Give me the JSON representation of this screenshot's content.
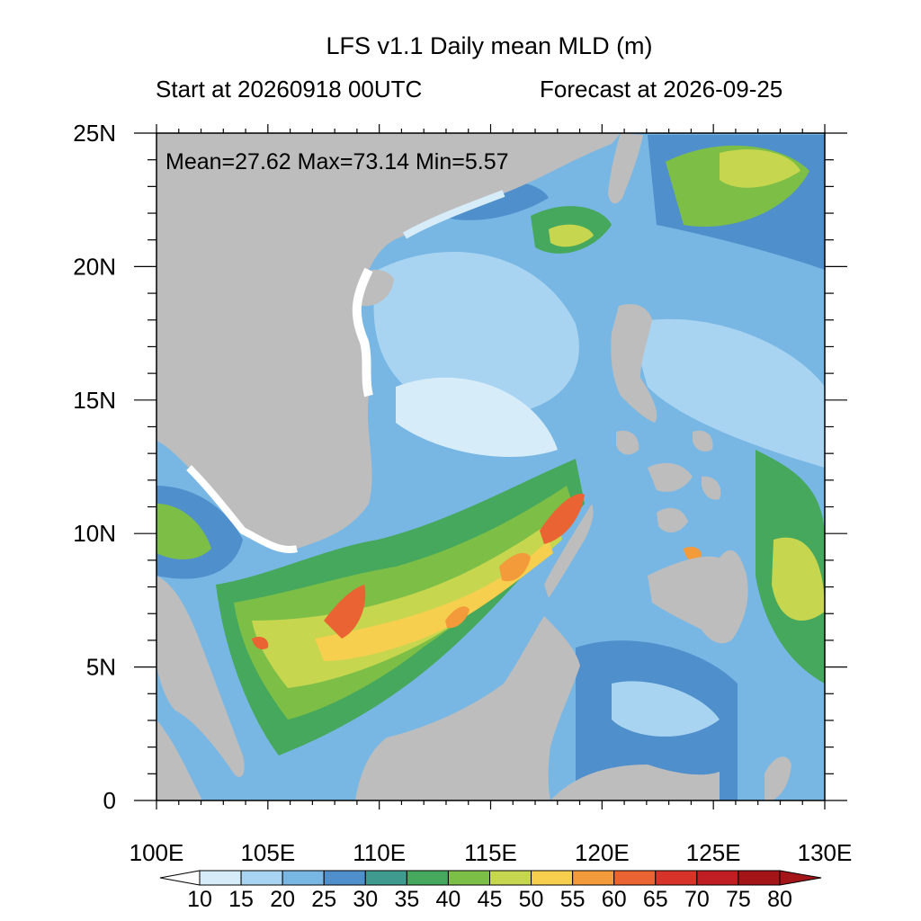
{
  "title": "LFS v1.1 Daily mean MLD (m)",
  "subtitle_left": "Start at 20260918 00UTC",
  "subtitle_right": "Forecast at 2026-09-25",
  "stats": "Mean=27.62  Max=73.14  Min=5.57",
  "map": {
    "lon_range": [
      100,
      130
    ],
    "lat_range": [
      0,
      25
    ],
    "lon_ticks": [
      "100E",
      "105E",
      "110E",
      "115E",
      "120E",
      "125E",
      "130E"
    ],
    "lat_ticks": [
      "0",
      "5N",
      "10N",
      "15N",
      "20N",
      "25N"
    ],
    "land_color": "#bdbdbd",
    "stats_summary": {
      "mean": 27.62,
      "max": 73.14,
      "min": 5.57
    }
  },
  "colorbar": {
    "labels": [
      "10",
      "15",
      "20",
      "25",
      "30",
      "35",
      "40",
      "45",
      "50",
      "55",
      "60",
      "65",
      "70",
      "75",
      "80"
    ],
    "colors": [
      "#ffffff",
      "#d6ecf8",
      "#a8d4f1",
      "#78b7e4",
      "#4f8fcc",
      "#3f9a8f",
      "#46a85c",
      "#7dbf46",
      "#c6d64f",
      "#f7cf4f",
      "#f39a3a",
      "#ea6332",
      "#d83328",
      "#c01d22",
      "#a31518"
    ]
  }
}
